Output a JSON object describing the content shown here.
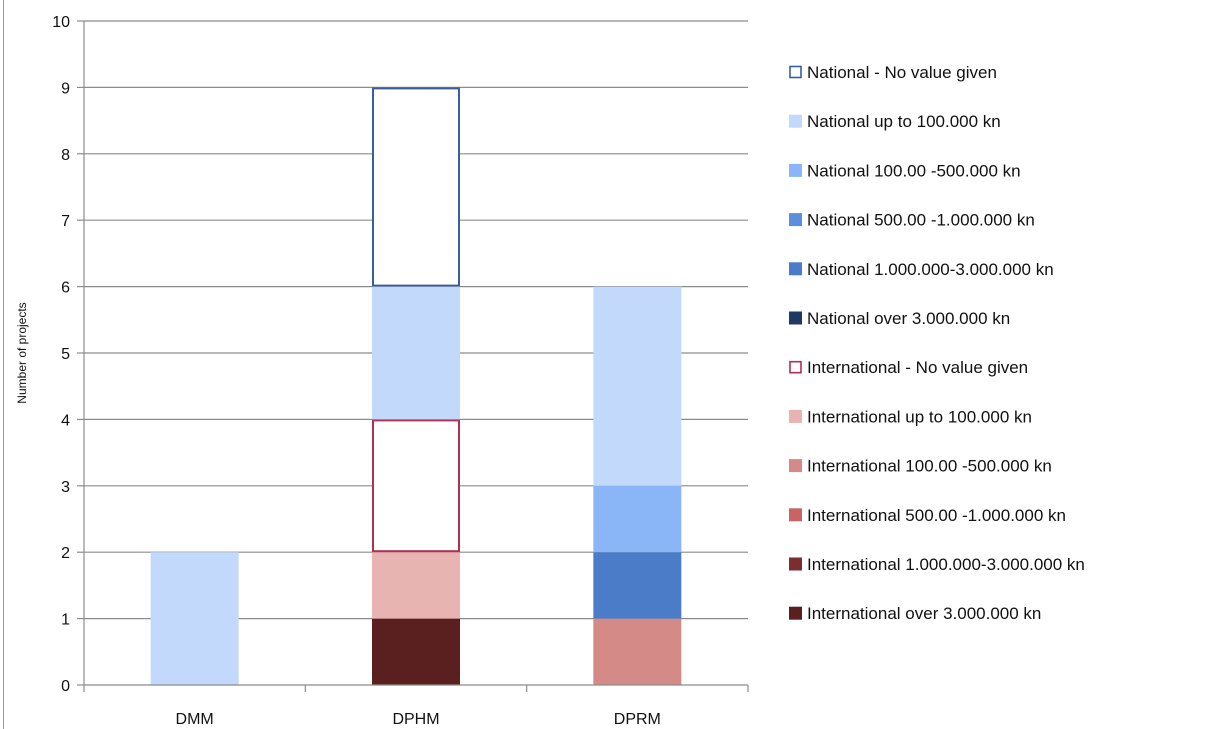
{
  "chart_data": {
    "type": "bar",
    "stacked": true,
    "categories": [
      "DMM",
      "DPHM",
      "DPRM"
    ],
    "ylabel": "Number of projects",
    "xlabel": "",
    "ylim": [
      0,
      10
    ],
    "yticks": [
      0,
      1,
      2,
      3,
      4,
      5,
      6,
      7,
      8,
      9,
      10
    ],
    "grid": true,
    "legend_position": "right",
    "series": [
      {
        "name": "International over 3.000.000 kn",
        "values": [
          0,
          1,
          0
        ],
        "fill": "#5a2020",
        "stroke": "none"
      },
      {
        "name": "International 1.000.000-3.000.000 kn",
        "values": [
          0,
          0,
          0
        ],
        "fill": "#7a2e2e",
        "stroke": "none"
      },
      {
        "name": "International 500.00 -1.000.000 kn",
        "values": [
          0,
          0,
          0
        ],
        "fill": "#c86464",
        "stroke": "none"
      },
      {
        "name": "International 100.00 -500.000 kn",
        "values": [
          0,
          0,
          1
        ],
        "fill": "#d48a86",
        "stroke": "none"
      },
      {
        "name": "International up to 100.000 kn",
        "values": [
          0,
          1,
          0
        ],
        "fill": "#e8b4b2",
        "stroke": "none"
      },
      {
        "name": "International - No value given",
        "values": [
          0,
          2,
          0
        ],
        "fill": "#ffffff",
        "stroke": "#b03050"
      },
      {
        "name": "National over 3.000.000 kn",
        "values": [
          0,
          0,
          0
        ],
        "fill": "#1f3864",
        "stroke": "none"
      },
      {
        "name": "National 1.000.000-3.000.000 kn",
        "values": [
          0,
          0,
          1
        ],
        "fill": "#4a7cc8",
        "stroke": "none"
      },
      {
        "name": "National 500.00 -1.000.000 kn",
        "values": [
          0,
          0,
          0
        ],
        "fill": "#5b8fdb",
        "stroke": "none"
      },
      {
        "name": "National 100.00 -500.000 kn",
        "values": [
          0,
          0,
          1
        ],
        "fill": "#8ab6f8",
        "stroke": "none"
      },
      {
        "name": "National up to 100.000 kn",
        "values": [
          2,
          2,
          3
        ],
        "fill": "#c3d9fb",
        "stroke": "none"
      },
      {
        "name": "National - No value given",
        "values": [
          0,
          3,
          0
        ],
        "fill": "#ffffff",
        "stroke": "#3a5f9a"
      }
    ],
    "legend_order": [
      "National - No value given",
      "National up to 100.000 kn",
      "National 100.00 -500.000 kn",
      "National 500.00 -1.000.000 kn",
      "National 1.000.000-3.000.000 kn",
      "National over 3.000.000 kn",
      "International - No value given",
      "International up to 100.000 kn",
      "International 100.00 -500.000 kn",
      "International 500.00 -1.000.000 kn",
      "International 1.000.000-3.000.000 kn",
      "International over 3.000.000 kn"
    ]
  }
}
